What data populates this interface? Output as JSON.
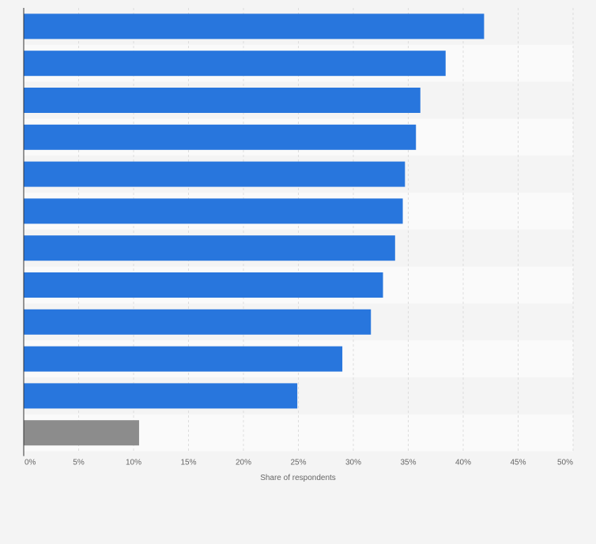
{
  "chart_data": {
    "type": "bar",
    "orientation": "horizontal",
    "title": "",
    "xlabel": "Share of respondents",
    "ylabel": "",
    "xlim": [
      0,
      50
    ],
    "grid": true,
    "legend": "none",
    "ticks": [
      "0%",
      "5%",
      "10%",
      "15%",
      "20%",
      "25%",
      "30%",
      "35%",
      "40%",
      "45%",
      "50%"
    ],
    "tick_values": [
      0,
      5,
      10,
      15,
      20,
      25,
      30,
      35,
      40,
      45,
      50
    ],
    "categories": [
      "",
      "",
      "",
      "",
      "",
      "",
      "",
      "",
      "",
      "",
      "",
      ""
    ],
    "values": [
      41.9,
      38.4,
      36.1,
      35.7,
      34.7,
      34.5,
      33.8,
      32.7,
      31.6,
      29.0,
      24.9,
      10.5
    ],
    "bar_colors": [
      "#2876dd",
      "#2876dd",
      "#2876dd",
      "#2876dd",
      "#2876dd",
      "#2876dd",
      "#2876dd",
      "#2876dd",
      "#2876dd",
      "#2876dd",
      "#2876dd",
      "#8c8c8c"
    ],
    "band_colors": [
      "#f4f4f4",
      "#fafafa"
    ],
    "grid_color": "#dddddd",
    "axis_color": "#333333"
  }
}
